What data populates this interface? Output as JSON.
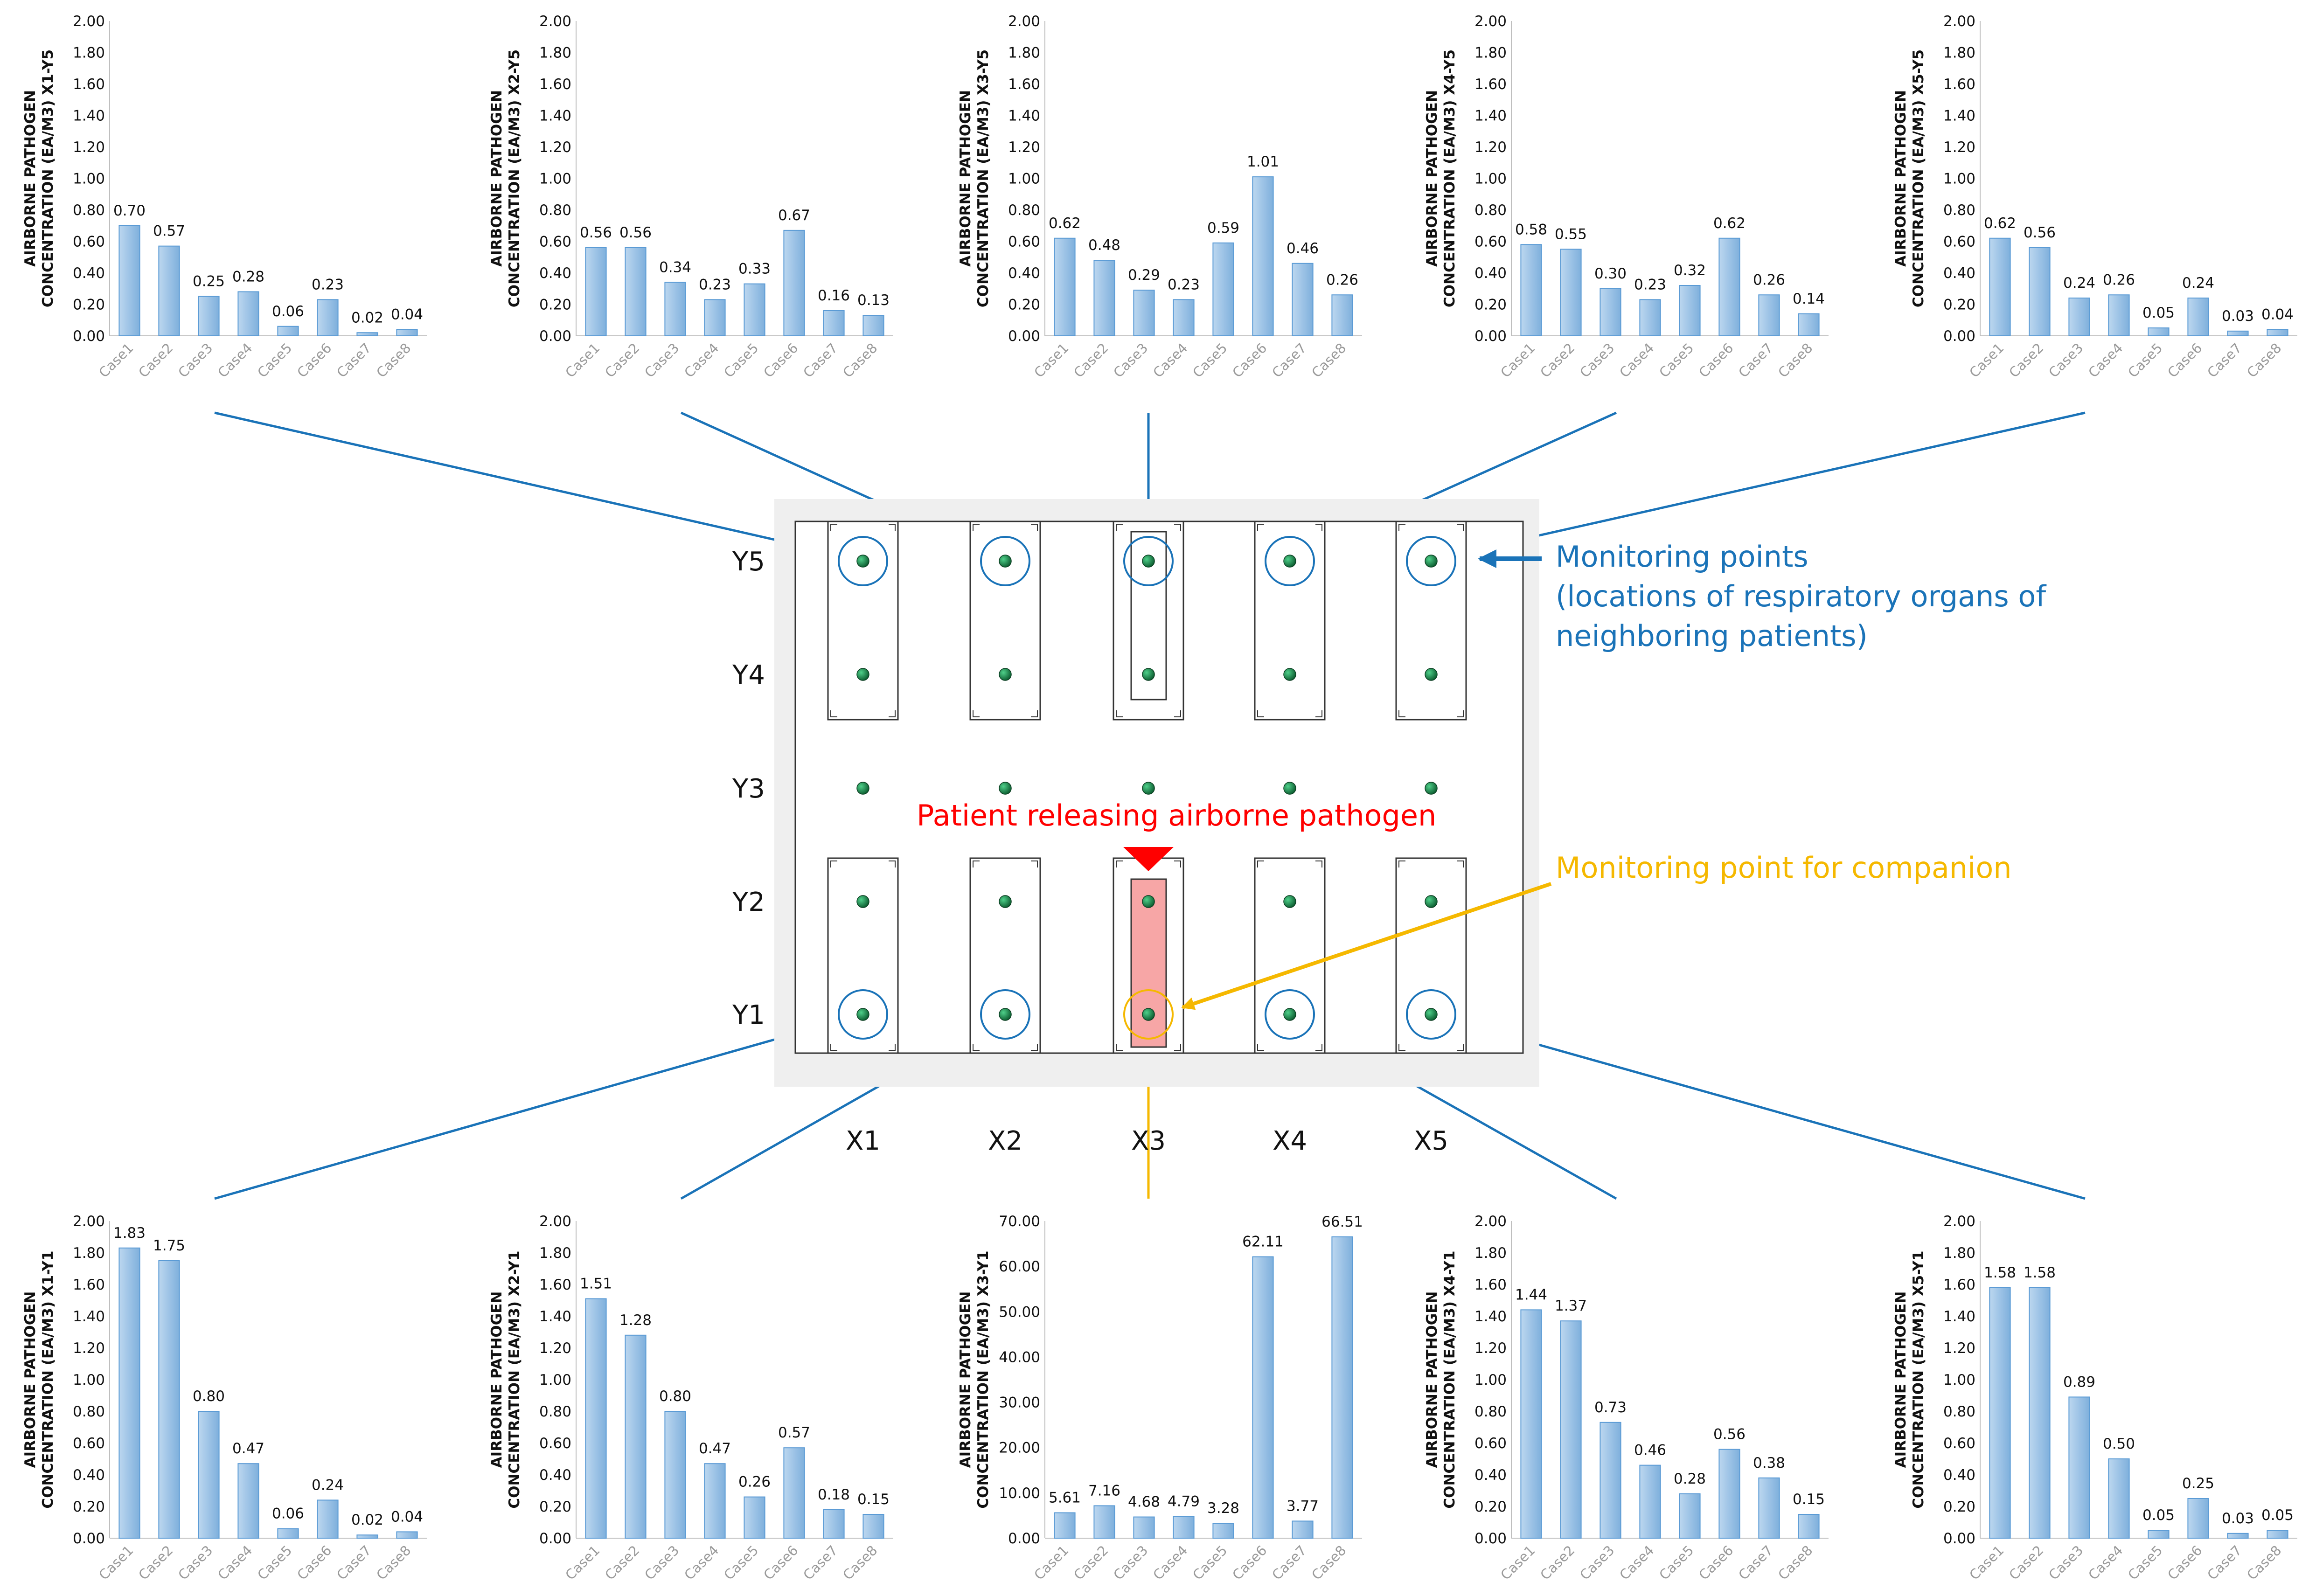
{
  "chart_data": [
    {
      "id": "X1-Y5",
      "type": "bar",
      "ylabel_line1": "AIRBORNE PATHOGEN",
      "ylabel_line2": "CONCENTRATION (EA/M3) X1-Y5",
      "categories": [
        "Case1",
        "Case2",
        "Case3",
        "Case4",
        "Case5",
        "Case6",
        "Case7",
        "Case8"
      ],
      "values": [
        0.7,
        0.57,
        0.25,
        0.28,
        0.06,
        0.23,
        0.02,
        0.04
      ],
      "value_labels": [
        "0.70",
        "0.57",
        "0.25",
        "0.28",
        "0.06",
        "0.23",
        "0.02",
        "0.04"
      ],
      "ylim": [
        0,
        2
      ],
      "yticks": [
        "0.00",
        "0.20",
        "0.40",
        "0.60",
        "0.80",
        "1.00",
        "1.20",
        "1.40",
        "1.60",
        "1.80",
        "2.00"
      ]
    },
    {
      "id": "X2-Y5",
      "type": "bar",
      "ylabel_line1": "AIRBORNE PATHOGEN",
      "ylabel_line2": "CONCENTRATION (EA/M3) X2-Y5",
      "categories": [
        "Case1",
        "Case2",
        "Case3",
        "Case4",
        "Case5",
        "Case6",
        "Case7",
        "Case8"
      ],
      "values": [
        0.56,
        0.56,
        0.34,
        0.23,
        0.33,
        0.67,
        0.16,
        0.13
      ],
      "value_labels": [
        "0.56",
        "0.56",
        "0.34",
        "0.23",
        "0.33",
        "0.67",
        "0.16",
        "0.13"
      ],
      "ylim": [
        0,
        2
      ],
      "yticks": [
        "0.00",
        "0.20",
        "0.40",
        "0.60",
        "0.80",
        "1.00",
        "1.20",
        "1.40",
        "1.60",
        "1.80",
        "2.00"
      ]
    },
    {
      "id": "X3-Y5",
      "type": "bar",
      "ylabel_line1": "AIRBORNE PATHOGEN",
      "ylabel_line2": "CONCENTRATION (EA/M3) X3-Y5",
      "categories": [
        "Case1",
        "Case2",
        "Case3",
        "Case4",
        "Case5",
        "Case6",
        "Case7",
        "Case8"
      ],
      "values": [
        0.62,
        0.48,
        0.29,
        0.23,
        0.59,
        1.01,
        0.46,
        0.26
      ],
      "value_labels": [
        "0.62",
        "0.48",
        "0.29",
        "0.23",
        "0.59",
        "1.01",
        "0.46",
        "0.26"
      ],
      "ylim": [
        0,
        2
      ],
      "yticks": [
        "0.00",
        "0.20",
        "0.40",
        "0.60",
        "0.80",
        "1.00",
        "1.20",
        "1.40",
        "1.60",
        "1.80",
        "2.00"
      ]
    },
    {
      "id": "X4-Y5",
      "type": "bar",
      "ylabel_line1": "AIRBORNE PATHOGEN",
      "ylabel_line2": "CONCENTRATION (EA/M3) X4-Y5",
      "categories": [
        "Case1",
        "Case2",
        "Case3",
        "Case4",
        "Case5",
        "Case6",
        "Case7",
        "Case8"
      ],
      "values": [
        0.58,
        0.55,
        0.3,
        0.23,
        0.32,
        0.62,
        0.26,
        0.14
      ],
      "value_labels": [
        "0.58",
        "0.55",
        "0.30",
        "0.23",
        "0.32",
        "0.62",
        "0.26",
        "0.14"
      ],
      "ylim": [
        0,
        2
      ],
      "yticks": [
        "0.00",
        "0.20",
        "0.40",
        "0.60",
        "0.80",
        "1.00",
        "1.20",
        "1.40",
        "1.60",
        "1.80",
        "2.00"
      ]
    },
    {
      "id": "X5-Y5",
      "type": "bar",
      "ylabel_line1": "AIRBORNE PATHOGEN",
      "ylabel_line2": "CONCENTRATION (EA/M3) X5-Y5",
      "categories": [
        "Case1",
        "Case2",
        "Case3",
        "Case4",
        "Case5",
        "Case6",
        "Case7",
        "Case8"
      ],
      "values": [
        0.62,
        0.56,
        0.24,
        0.26,
        0.05,
        0.24,
        0.03,
        0.04
      ],
      "value_labels": [
        "0.62",
        "0.56",
        "0.24",
        "0.26",
        "0.05",
        "0.24",
        "0.03",
        "0.04"
      ],
      "ylim": [
        0,
        2
      ],
      "yticks": [
        "0.00",
        "0.20",
        "0.40",
        "0.60",
        "0.80",
        "1.00",
        "1.20",
        "1.40",
        "1.60",
        "1.80",
        "2.00"
      ]
    },
    {
      "id": "X1-Y1",
      "type": "bar",
      "ylabel_line1": "AIRBORNE PATHOGEN",
      "ylabel_line2": "CONCENTRATION (EA/M3) X1-Y1",
      "categories": [
        "Case1",
        "Case2",
        "Case3",
        "Case4",
        "Case5",
        "Case6",
        "Case7",
        "Case8"
      ],
      "values": [
        1.83,
        1.75,
        0.8,
        0.47,
        0.06,
        0.24,
        0.02,
        0.04
      ],
      "value_labels": [
        "1.83",
        "1.75",
        "0.80",
        "0.47",
        "0.06",
        "0.24",
        "0.02",
        "0.04"
      ],
      "ylim": [
        0,
        2
      ],
      "yticks": [
        "0.00",
        "0.20",
        "0.40",
        "0.60",
        "0.80",
        "1.00",
        "1.20",
        "1.40",
        "1.60",
        "1.80",
        "2.00"
      ]
    },
    {
      "id": "X2-Y1",
      "type": "bar",
      "ylabel_line1": "AIRBORNE PATHOGEN",
      "ylabel_line2": "CONCENTRATION (EA/M3) X2-Y1",
      "categories": [
        "Case1",
        "Case2",
        "Case3",
        "Case4",
        "Case5",
        "Case6",
        "Case7",
        "Case8"
      ],
      "values": [
        1.51,
        1.28,
        0.8,
        0.47,
        0.26,
        0.57,
        0.18,
        0.15
      ],
      "value_labels": [
        "1.51",
        "1.28",
        "0.80",
        "0.47",
        "0.26",
        "0.57",
        "0.18",
        "0.15"
      ],
      "ylim": [
        0,
        2
      ],
      "yticks": [
        "0.00",
        "0.20",
        "0.40",
        "0.60",
        "0.80",
        "1.00",
        "1.20",
        "1.40",
        "1.60",
        "1.80",
        "2.00"
      ]
    },
    {
      "id": "X3-Y1",
      "type": "bar",
      "ylabel_line1": "AIRBORNE PATHOGEN",
      "ylabel_line2": "CONCENTRATION (EA/M3) X3-Y1",
      "categories": [
        "Case1",
        "Case2",
        "Case3",
        "Case4",
        "Case5",
        "Case6",
        "Case7",
        "Case8"
      ],
      "values": [
        5.61,
        7.16,
        4.68,
        4.79,
        3.28,
        62.11,
        3.77,
        66.51
      ],
      "value_labels": [
        "5.61",
        "7.16",
        "4.68",
        "4.79",
        "3.28",
        "62.11",
        "3.77",
        "66.51"
      ],
      "ylim": [
        0,
        70
      ],
      "yticks": [
        "0.00",
        "10.00",
        "20.00",
        "30.00",
        "40.00",
        "50.00",
        "60.00",
        "70.00"
      ]
    },
    {
      "id": "X4-Y1",
      "type": "bar",
      "ylabel_line1": "AIRBORNE PATHOGEN",
      "ylabel_line2": "CONCENTRATION (EA/M3) X4-Y1",
      "categories": [
        "Case1",
        "Case2",
        "Case3",
        "Case4",
        "Case5",
        "Case6",
        "Case7",
        "Case8"
      ],
      "values": [
        1.44,
        1.37,
        0.73,
        0.46,
        0.28,
        0.56,
        0.38,
        0.15
      ],
      "value_labels": [
        "1.44",
        "1.37",
        "0.73",
        "0.46",
        "0.28",
        "0.56",
        "0.38",
        "0.15"
      ],
      "ylim": [
        0,
        2
      ],
      "yticks": [
        "0.00",
        "0.20",
        "0.40",
        "0.60",
        "0.80",
        "1.00",
        "1.20",
        "1.40",
        "1.60",
        "1.80",
        "2.00"
      ]
    },
    {
      "id": "X5-Y1",
      "type": "bar",
      "ylabel_line1": "AIRBORNE PATHOGEN",
      "ylabel_line2": "CONCENTRATION (EA/M3) X5-Y1",
      "categories": [
        "Case1",
        "Case2",
        "Case3",
        "Case4",
        "Case5",
        "Case6",
        "Case7",
        "Case8"
      ],
      "values": [
        1.58,
        1.58,
        0.89,
        0.5,
        0.05,
        0.25,
        0.03,
        0.05
      ],
      "value_labels": [
        "1.58",
        "1.58",
        "0.89",
        "0.50",
        "0.05",
        "0.25",
        "0.03",
        "0.05"
      ],
      "ylim": [
        0,
        2
      ],
      "yticks": [
        "0.00",
        "0.20",
        "0.40",
        "0.60",
        "0.80",
        "1.00",
        "1.20",
        "1.40",
        "1.60",
        "1.80",
        "2.00"
      ]
    }
  ],
  "diagram": {
    "row_labels": [
      "Y5",
      "Y4",
      "Y3",
      "Y2",
      "Y1"
    ],
    "col_labels": [
      "X1",
      "X2",
      "X3",
      "X4",
      "X5"
    ],
    "annotations": {
      "monitoring_points_line1": "Monitoring points",
      "monitoring_points_line2": "(locations of respiratory organs of",
      "monitoring_points_line3": "neighboring patients)",
      "patient_source": "Patient releasing airborne pathogen",
      "companion_point": "Monitoring point for companion"
    },
    "colors": {
      "monitor_blue": "#1a73b8",
      "source_red": "#ff0000",
      "companion_orange": "#f5b800",
      "bar_fill": "#9dc3e6",
      "bar_stroke": "#5b9bd5"
    }
  }
}
